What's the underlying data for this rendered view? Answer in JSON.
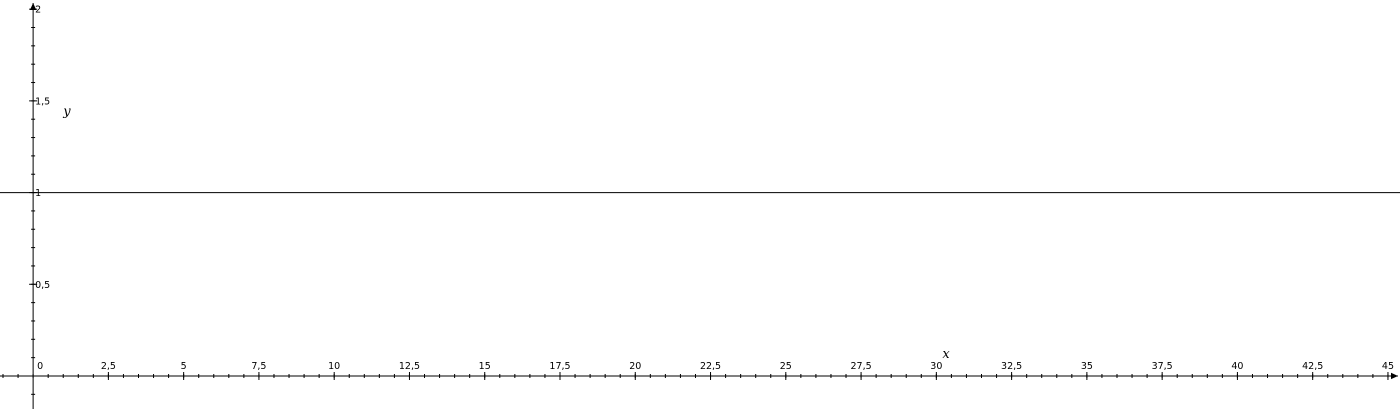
{
  "chart_data": {
    "type": "line",
    "title": "",
    "xlabel": "x",
    "ylabel": "y",
    "xlim": [
      -1.1,
      45.4
    ],
    "ylim": [
      -0.18,
      2.05
    ],
    "grid": false,
    "x_ticks": [
      "0",
      "2,5",
      "5",
      "7,5",
      "10",
      "12,5",
      "15",
      "17,5",
      "20",
      "22,5",
      "25",
      "27,5",
      "30",
      "32,5",
      "35",
      "37,5",
      "40",
      "42,5",
      "45"
    ],
    "y_ticks": [
      "0,5",
      "1",
      "1,5",
      "2"
    ],
    "series": [
      {
        "function": "y = 1",
        "x": [
          -1.1,
          45.4
        ],
        "y": [
          1,
          1
        ],
        "color": "#000000"
      }
    ]
  }
}
